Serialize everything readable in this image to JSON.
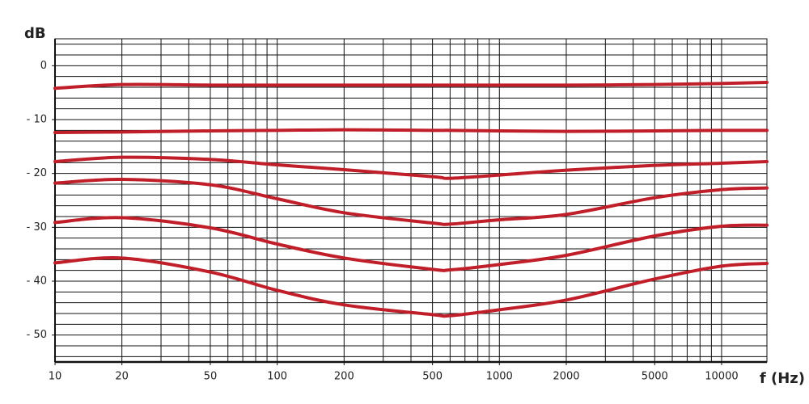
{
  "chart_data": {
    "type": "line",
    "xlabel": "f (Hz)",
    "ylabel": "dB",
    "xscale": "log",
    "grid": true,
    "x": [
      10,
      20,
      50,
      100,
      200,
      500,
      600,
      1000,
      2000,
      5000,
      10000,
      16000
    ],
    "series": [
      {
        "color": "#c01f2a",
        "values": [
          -4.2,
          -3.5,
          -3.6,
          -3.6,
          -3.6,
          -3.6,
          -3.6,
          -3.6,
          -3.6,
          -3.5,
          -3.3,
          -3.1
        ]
      },
      {
        "color": "#c01f2a",
        "values": [
          -12.4,
          -12.3,
          -12.1,
          -12.0,
          -11.9,
          -12.0,
          -12.0,
          -12.1,
          -12.2,
          -12.1,
          -12.0,
          -12.0
        ]
      },
      {
        "color": "#c01f2a",
        "values": [
          -17.8,
          -17.0,
          -17.4,
          -18.4,
          -19.3,
          -20.6,
          -20.9,
          -20.3,
          -19.4,
          -18.5,
          -18.1,
          -17.8
        ]
      },
      {
        "color": "#c01f2a",
        "values": [
          -21.8,
          -21.1,
          -22.1,
          -24.7,
          -27.3,
          -29.2,
          -29.4,
          -28.6,
          -27.6,
          -24.5,
          -23.0,
          -22.7
        ]
      },
      {
        "color": "#c01f2a",
        "values": [
          -29.1,
          -28.2,
          -30.1,
          -33.1,
          -35.7,
          -37.8,
          -37.9,
          -36.9,
          -35.2,
          -31.6,
          -29.8,
          -29.6
        ]
      },
      {
        "color": "#c01f2a",
        "values": [
          -36.6,
          -35.7,
          -38.3,
          -41.7,
          -44.4,
          -46.2,
          -46.4,
          -45.3,
          -43.5,
          -39.6,
          -37.2,
          -36.7
        ]
      }
    ],
    "xlim": [
      10,
      16000
    ],
    "ylim": [
      -55,
      5
    ],
    "xticks": [
      10,
      20,
      50,
      100,
      200,
      500,
      1000,
      2000,
      5000,
      10000
    ],
    "yticks": [
      0,
      {
        "value": -10,
        "label": "- 10"
      },
      {
        "value": -20,
        "label": "- 20"
      },
      {
        "value": -30,
        "label": "- 30"
      },
      {
        "value": -40,
        "label": "- 40"
      },
      {
        "value": -50,
        "label": "- 50"
      }
    ],
    "xgrid": [
      10,
      20,
      30,
      40,
      50,
      60,
      70,
      80,
      90,
      100,
      200,
      300,
      400,
      500,
      600,
      700,
      800,
      900,
      1000,
      2000,
      3000,
      4000,
      5000,
      6000,
      7000,
      8000,
      9000,
      10000
    ],
    "ygrid": [
      4,
      2,
      0,
      -2,
      -4,
      -6,
      -8,
      -10,
      -12,
      -14,
      -16,
      -18,
      -20,
      -22,
      -24,
      -26,
      -28,
      -30,
      -32,
      -34,
      -36,
      -38,
      -40,
      -42,
      -44,
      -46,
      -48,
      -50,
      -52,
      -54
    ]
  }
}
